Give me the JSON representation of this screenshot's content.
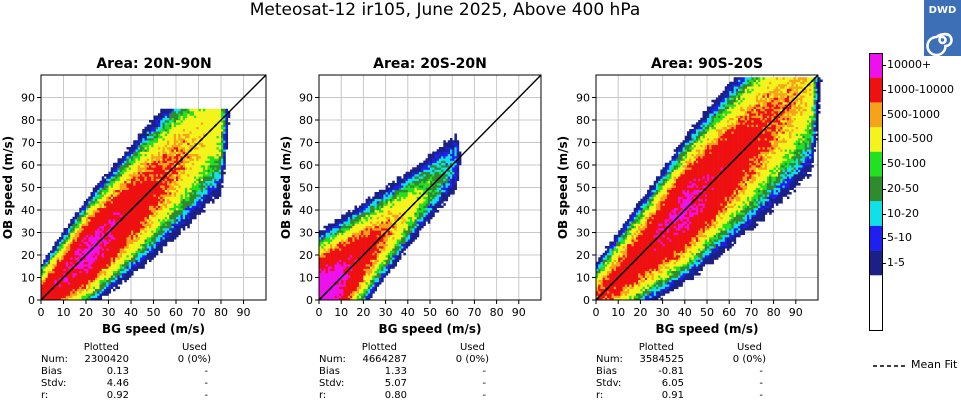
{
  "suptitle": "Meteosat-12 ir105, June 2025, Above 400 hPa",
  "logo_text": "DWD",
  "colors": {
    "bin_1_5": "#1a2085",
    "bin_5_10": "#1f1ff0",
    "bin_10_20": "#12e0e8",
    "bin_20_50": "#2e8b2e",
    "bin_50_100": "#22e022",
    "bin_100_500": "#f4f41c",
    "bin_500_1000": "#f7a21b",
    "bin_1000_10000": "#ee1111",
    "bin_10000_plus": "#ee11ee",
    "grid": "#c8c8c8",
    "diagonal": "#000000",
    "mean_fit": "#000000"
  },
  "colorbar": {
    "labels": [
      "10000+",
      "1000-10000",
      "500-1000",
      "100-500",
      "50-100",
      "20-50",
      "10-20",
      "5-10",
      "1-5"
    ]
  },
  "legend": {
    "mean_fit_label": "Mean Fit"
  },
  "stats_headers": {
    "plotted": "Plotted",
    "used": "Used",
    "num": "Num:",
    "bias": "Bias",
    "stdv": "Stdv:",
    "r": "r:"
  },
  "chart_data": [
    {
      "type": "heatmap",
      "title": "Area: 20N-90N",
      "xlabel": "BG speed (m/s)",
      "ylabel": "OB speed (m/s)",
      "xlim": [
        0,
        100
      ],
      "ylim": [
        0,
        100
      ],
      "xticks": [
        0,
        10,
        20,
        30,
        40,
        50,
        60,
        70,
        80,
        90
      ],
      "yticks": [
        0,
        10,
        20,
        30,
        40,
        50,
        60,
        70,
        80,
        90
      ],
      "grid": true,
      "diagonal": [
        [
          0,
          0
        ],
        [
          100,
          100
        ]
      ],
      "mean_fit": [
        [
          0,
          0
        ],
        [
          78,
          78
        ]
      ],
      "density_model": {
        "ridge_max": 80,
        "core_density_log10": 4.3,
        "spread": 6.5,
        "max_obs": 85
      },
      "stats": {
        "num_plotted": "2300420",
        "num_used": "0 (0%)",
        "bias_plotted": "0.13",
        "bias_used": "-",
        "stdv_plotted": "4.46",
        "stdv_used": "-",
        "r_plotted": "0.92",
        "r_used": "-"
      }
    },
    {
      "type": "heatmap",
      "title": "Area: 20S-20N",
      "xlabel": "BG speed (m/s)",
      "ylabel": "OB speed (m/s)",
      "xlim": [
        0,
        100
      ],
      "ylim": [
        0,
        100
      ],
      "xticks": [
        0,
        10,
        20,
        30,
        40,
        50,
        60,
        70,
        80,
        90
      ],
      "yticks": [
        0,
        10,
        20,
        30,
        40,
        50,
        60,
        70,
        80,
        90
      ],
      "grid": true,
      "diagonal": [
        [
          0,
          0
        ],
        [
          100,
          100
        ]
      ],
      "mean_fit": [
        [
          0,
          0
        ],
        [
          60,
          60
        ]
      ],
      "density_model": {
        "ridge_max": 62,
        "core_density_log10": 4.8,
        "spread": 5.5,
        "max_obs": 78
      },
      "stats": {
        "num_plotted": "4664287",
        "num_used": "0 (0%)",
        "bias_plotted": "1.33",
        "bias_used": "-",
        "stdv_plotted": "5.07",
        "stdv_used": "-",
        "r_plotted": "0.80",
        "r_used": "-"
      }
    },
    {
      "type": "heatmap",
      "title": "Area: 90S-20S",
      "xlabel": "BG speed (m/s)",
      "ylabel": "OB speed (m/s)",
      "xlim": [
        0,
        100
      ],
      "ylim": [
        0,
        100
      ],
      "xticks": [
        0,
        10,
        20,
        30,
        40,
        50,
        60,
        70,
        80,
        90
      ],
      "yticks": [
        0,
        10,
        20,
        30,
        40,
        50,
        60,
        70,
        80,
        90
      ],
      "grid": true,
      "diagonal": [
        [
          0,
          0
        ],
        [
          100,
          100
        ]
      ],
      "mean_fit": [
        [
          0,
          0
        ],
        [
          96,
          96
        ]
      ],
      "density_model": {
        "ridge_max": 97,
        "core_density_log10": 4.2,
        "spread": 7.0,
        "max_obs": 99
      },
      "stats": {
        "num_plotted": "3584525",
        "num_used": "0 (0%)",
        "bias_plotted": "-0.81",
        "bias_used": "-",
        "stdv_plotted": "6.05",
        "stdv_used": "-",
        "r_plotted": "0.91",
        "r_used": "-"
      }
    }
  ]
}
